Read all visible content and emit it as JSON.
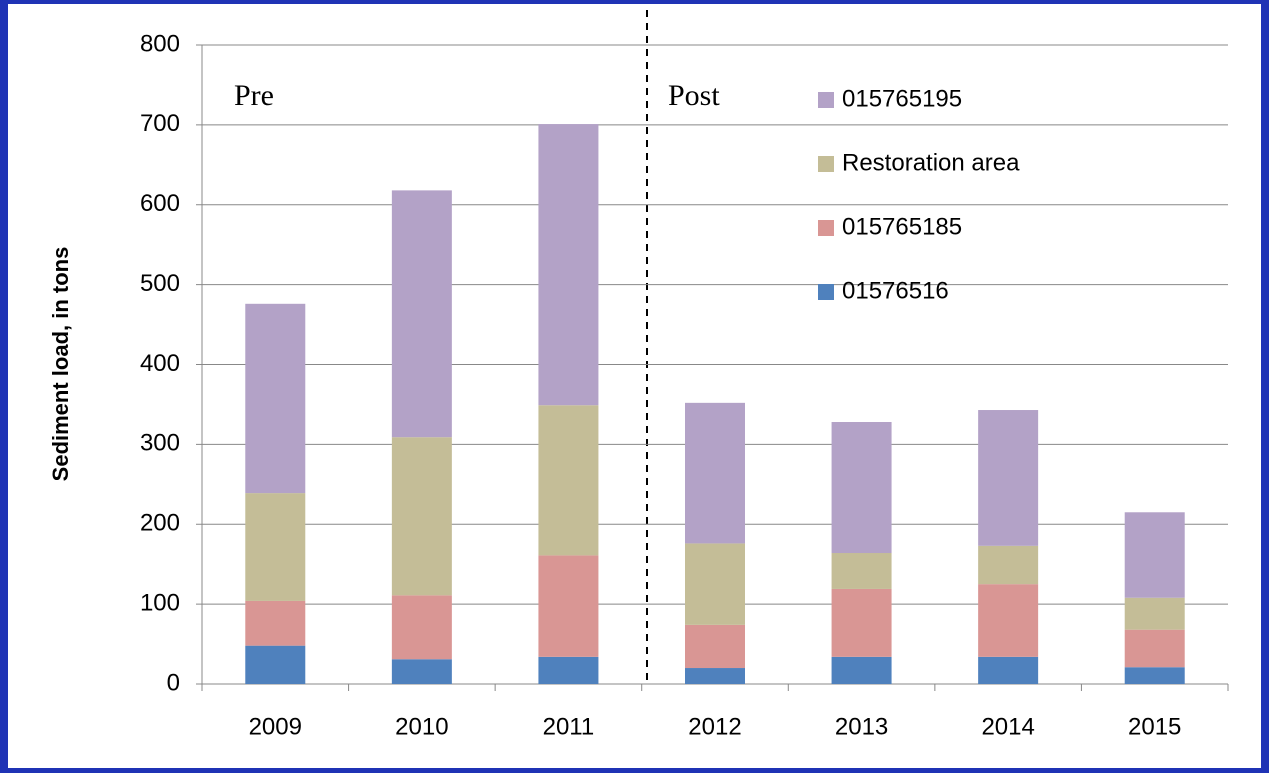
{
  "chart_data": {
    "type": "bar",
    "stacked": true,
    "y_label": "Sediment load, in tons",
    "categories": [
      "2009",
      "2010",
      "2011",
      "2012",
      "2013",
      "2014",
      "2015"
    ],
    "series": [
      {
        "name": "01576516",
        "color": "#4f81bd",
        "values": [
          48,
          31,
          34,
          20,
          34,
          34,
          21
        ]
      },
      {
        "name": "015765185",
        "color": "#d99694",
        "values": [
          56,
          80,
          127,
          54,
          85,
          91,
          47
        ]
      },
      {
        "name": "Restoration area",
        "color": "#c4bd97",
        "values": [
          135,
          198,
          188,
          102,
          45,
          48,
          40
        ]
      },
      {
        "name": "015765195",
        "color": "#b3a2c7",
        "values": [
          237,
          309,
          352,
          176,
          164,
          170,
          107
        ]
      }
    ],
    "annotations": [
      "Pre",
      "Post"
    ],
    "ylim": [
      0,
      800
    ],
    "yticks": [
      0,
      100,
      200,
      300,
      400,
      500,
      600,
      700,
      800
    ],
    "grid": true,
    "legend": "top-right"
  }
}
